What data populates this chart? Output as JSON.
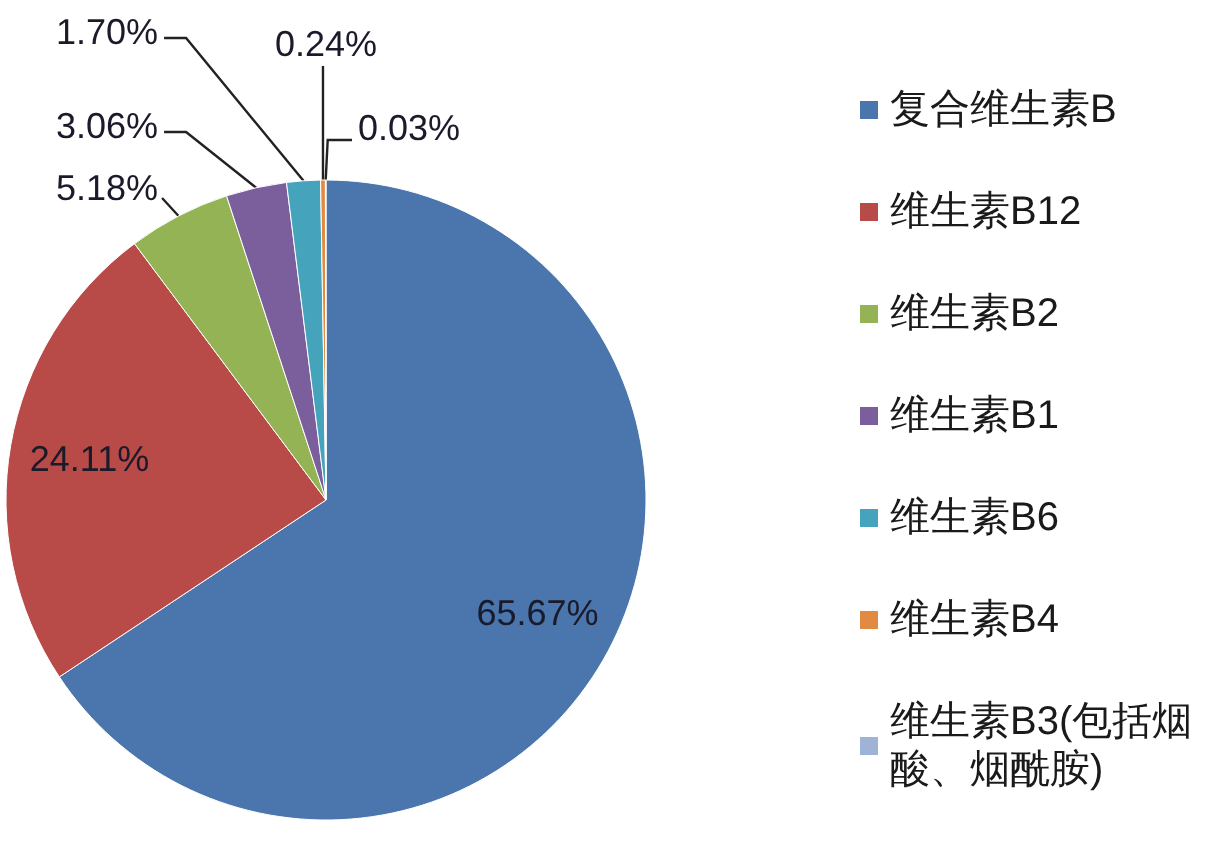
{
  "chart_data": {
    "type": "pie",
    "categories": [
      "复合维生素B",
      "维生素B12",
      "维生素B2",
      "维生素B1",
      "维生素B6",
      "维生素B4",
      "维生素B3(包括烟酸、烟酰胺)"
    ],
    "values": [
      65.67,
      24.11,
      5.18,
      3.06,
      1.7,
      0.24,
      0.03
    ],
    "colors": [
      "#4a76ad",
      "#b84a47",
      "#93b355",
      "#7a5f9c",
      "#45a4bc",
      "#e38a42",
      "#9fb3d6"
    ],
    "value_labels": [
      "65.67%",
      "24.11%",
      "5.18%",
      "3.06%",
      "1.70%",
      "0.24%",
      "0.03%"
    ],
    "legend": "right"
  }
}
